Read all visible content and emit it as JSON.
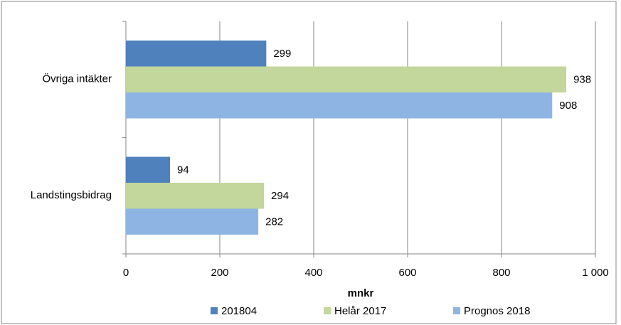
{
  "chart_data": {
    "type": "bar",
    "orientation": "horizontal",
    "categories": [
      "Övriga intäkter",
      "Landstingsbidrag"
    ],
    "series": [
      {
        "name": "201804",
        "color": "#4f81bd",
        "values": [
          299,
          94
        ]
      },
      {
        "name": "Helår 2017",
        "color": "#c3d69b",
        "values": [
          938,
          294
        ]
      },
      {
        "name": "Prognos 2018",
        "color": "#8eb4e3",
        "values": [
          908,
          282
        ]
      }
    ],
    "x_label": "mnkr",
    "xlim": [
      0,
      1000
    ],
    "xticks": [
      0,
      200,
      400,
      600,
      800,
      {
        "value": 1000,
        "label": "1 000"
      }
    ],
    "grid": true,
    "legend": "bottom"
  }
}
